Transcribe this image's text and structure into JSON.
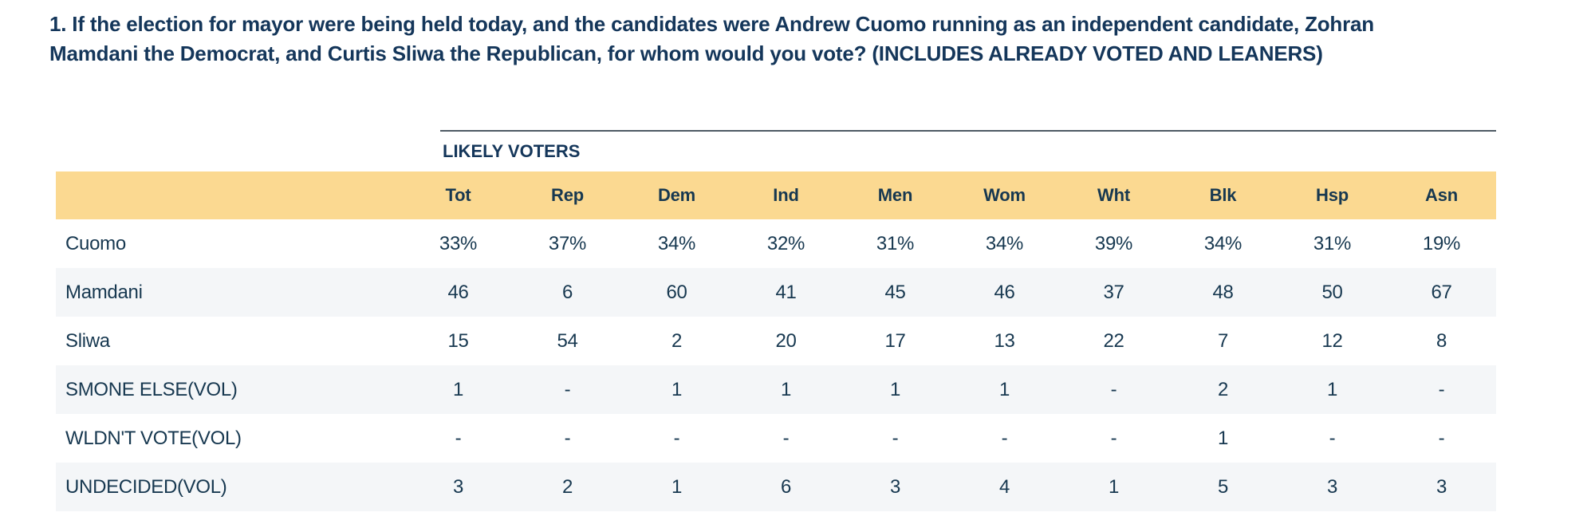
{
  "question": {
    "lines": [
      "1. If the election for mayor were being held today, and the candidates were Andrew Cuomo running as an independent candidate, Zohran",
      "Mamdani the Democrat, and Curtis Sliwa the Republican, for whom would you vote? (INCLUDES ALREADY VOTED AND LEANERS)"
    ]
  },
  "table": {
    "section_label": "LIKELY VOTERS",
    "columns": [
      "Tot",
      "Rep",
      "Dem",
      "Ind",
      "Men",
      "Wom",
      "Wht",
      "Blk",
      "Hsp",
      "Asn"
    ],
    "rows": [
      {
        "label": "Cuomo",
        "values": [
          "33%",
          "37%",
          "34%",
          "32%",
          "31%",
          "34%",
          "39%",
          "34%",
          "31%",
          "19%"
        ]
      },
      {
        "label": "Mamdani",
        "values": [
          "46",
          "6",
          "60",
          "41",
          "45",
          "46",
          "37",
          "48",
          "50",
          "67"
        ]
      },
      {
        "label": "Sliwa",
        "values": [
          "15",
          "54",
          "2",
          "20",
          "17",
          "13",
          "22",
          "7",
          "12",
          "8"
        ]
      },
      {
        "label": "SMONE ELSE(VOL)",
        "values": [
          "1",
          "-",
          "1",
          "1",
          "1",
          "1",
          "-",
          "2",
          "1",
          "-"
        ]
      },
      {
        "label": "WLDN'T VOTE(VOL)",
        "values": [
          "-",
          "-",
          "-",
          "-",
          "-",
          "-",
          "-",
          "1",
          "-",
          "-"
        ]
      },
      {
        "label": "UNDECIDED(VOL)",
        "values": [
          "3",
          "2",
          "1",
          "6",
          "3",
          "4",
          "1",
          "5",
          "3",
          "3"
        ]
      }
    ]
  },
  "colors": {
    "header_band": "#FBD991",
    "row_stripe": "#F4F6F8",
    "title_navy": "#14365A",
    "body_navy": "#173850",
    "rule": "#4E5A64"
  }
}
